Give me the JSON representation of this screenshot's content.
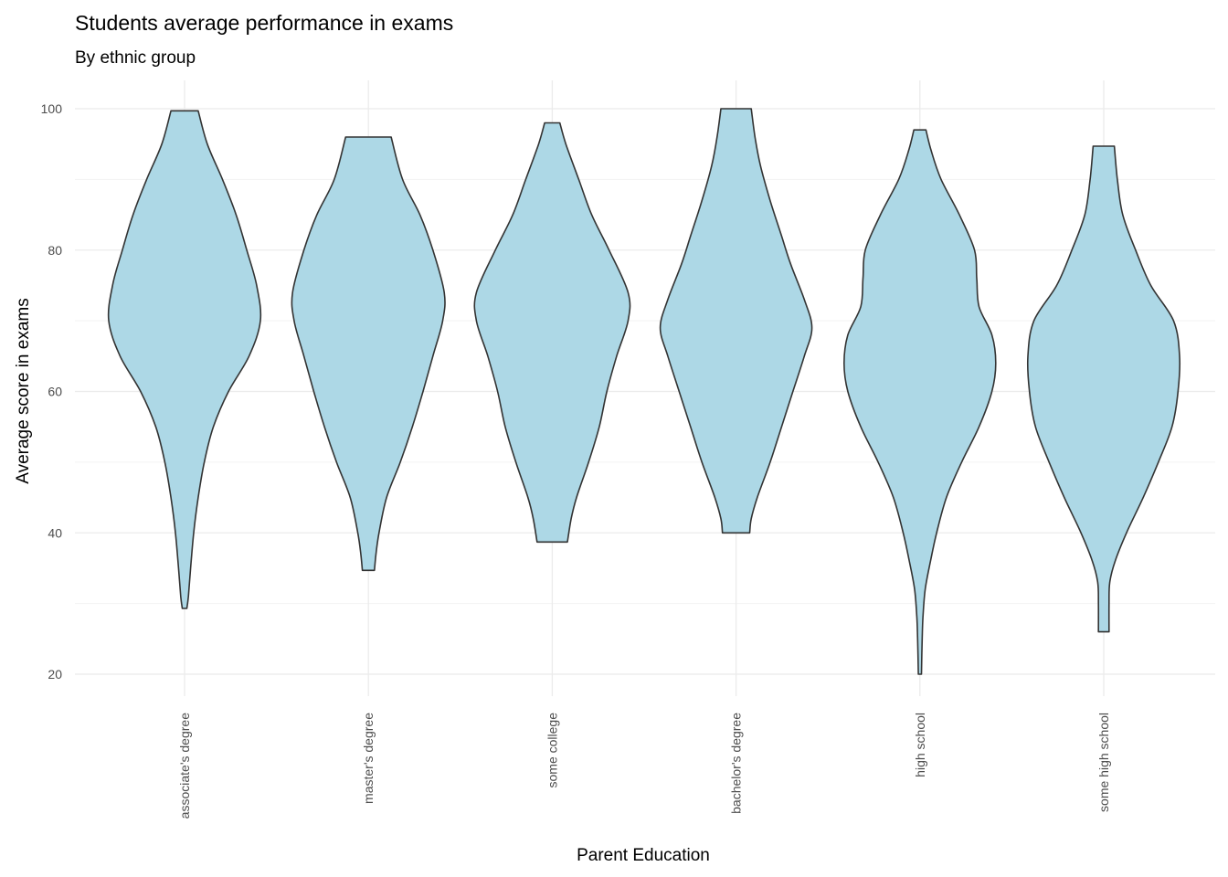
{
  "chart_data": {
    "type": "violin",
    "title": "Students average performance in exams",
    "subtitle": "By ethnic group",
    "xlabel": "Parent Education",
    "ylabel": "Average score in exams",
    "categories": [
      "associate's degree",
      "master's degree",
      "some college",
      "bachelor's degree",
      "high school",
      "some high school"
    ],
    "ylim": [
      15,
      103
    ],
    "yticks": [
      20,
      40,
      60,
      80,
      100
    ],
    "grid": true,
    "fill_color": "#add8e6",
    "outline_color": "#333333",
    "violins": [
      {
        "category": "associate's degree",
        "min": 29.3,
        "max": 99.7,
        "profile": [
          [
            29.3,
            0.03
          ],
          [
            31,
            0.05
          ],
          [
            35,
            0.08
          ],
          [
            40,
            0.12
          ],
          [
            45,
            0.18
          ],
          [
            50,
            0.26
          ],
          [
            55,
            0.38
          ],
          [
            60,
            0.58
          ],
          [
            65,
            0.85
          ],
          [
            70,
            1.0
          ],
          [
            75,
            0.95
          ],
          [
            80,
            0.82
          ],
          [
            85,
            0.68
          ],
          [
            90,
            0.5
          ],
          [
            95,
            0.3
          ],
          [
            99.7,
            0.18
          ]
        ]
      },
      {
        "category": "master's degree",
        "min": 34.7,
        "max": 96.0,
        "profile": [
          [
            34.7,
            0.08
          ],
          [
            37,
            0.1
          ],
          [
            40,
            0.14
          ],
          [
            45,
            0.24
          ],
          [
            50,
            0.42
          ],
          [
            55,
            0.58
          ],
          [
            60,
            0.72
          ],
          [
            65,
            0.85
          ],
          [
            70,
            0.98
          ],
          [
            74,
            1.0
          ],
          [
            80,
            0.85
          ],
          [
            85,
            0.68
          ],
          [
            90,
            0.45
          ],
          [
            96,
            0.3
          ]
        ]
      },
      {
        "category": "some college",
        "min": 38.7,
        "max": 98.0,
        "profile": [
          [
            38.7,
            0.2
          ],
          [
            42,
            0.25
          ],
          [
            45,
            0.32
          ],
          [
            50,
            0.48
          ],
          [
            55,
            0.62
          ],
          [
            60,
            0.72
          ],
          [
            65,
            0.85
          ],
          [
            70,
            1.0
          ],
          [
            74,
            1.0
          ],
          [
            80,
            0.75
          ],
          [
            85,
            0.52
          ],
          [
            90,
            0.35
          ],
          [
            95,
            0.18
          ],
          [
            98,
            0.1
          ]
        ]
      },
      {
        "category": "bachelor's degree",
        "min": 40.0,
        "max": 100.0,
        "profile": [
          [
            40,
            0.18
          ],
          [
            42,
            0.2
          ],
          [
            45,
            0.28
          ],
          [
            50,
            0.45
          ],
          [
            55,
            0.6
          ],
          [
            60,
            0.75
          ],
          [
            65,
            0.9
          ],
          [
            69,
            1.0
          ],
          [
            73,
            0.9
          ],
          [
            78,
            0.72
          ],
          [
            82,
            0.6
          ],
          [
            87,
            0.45
          ],
          [
            92,
            0.32
          ],
          [
            96,
            0.25
          ],
          [
            100,
            0.2
          ]
        ]
      },
      {
        "category": "high school",
        "min": 20.0,
        "max": 97.0,
        "profile": [
          [
            20,
            0.02
          ],
          [
            25,
            0.03
          ],
          [
            28,
            0.04
          ],
          [
            32,
            0.07
          ],
          [
            36,
            0.14
          ],
          [
            40,
            0.22
          ],
          [
            45,
            0.35
          ],
          [
            50,
            0.55
          ],
          [
            55,
            0.78
          ],
          [
            60,
            0.95
          ],
          [
            64,
            1.0
          ],
          [
            68,
            0.95
          ],
          [
            72,
            0.78
          ],
          [
            76,
            0.75
          ],
          [
            80,
            0.72
          ],
          [
            85,
            0.52
          ],
          [
            90,
            0.28
          ],
          [
            94,
            0.15
          ],
          [
            97,
            0.08
          ]
        ]
      },
      {
        "category": "some high school",
        "min": 26.0,
        "max": 94.7,
        "profile": [
          [
            26,
            0.07
          ],
          [
            30,
            0.07
          ],
          [
            33,
            0.08
          ],
          [
            36,
            0.15
          ],
          [
            40,
            0.3
          ],
          [
            45,
            0.52
          ],
          [
            50,
            0.72
          ],
          [
            55,
            0.9
          ],
          [
            60,
            0.98
          ],
          [
            65,
            1.0
          ],
          [
            70,
            0.92
          ],
          [
            75,
            0.62
          ],
          [
            80,
            0.42
          ],
          [
            85,
            0.25
          ],
          [
            90,
            0.18
          ],
          [
            94.7,
            0.14
          ]
        ]
      }
    ]
  }
}
